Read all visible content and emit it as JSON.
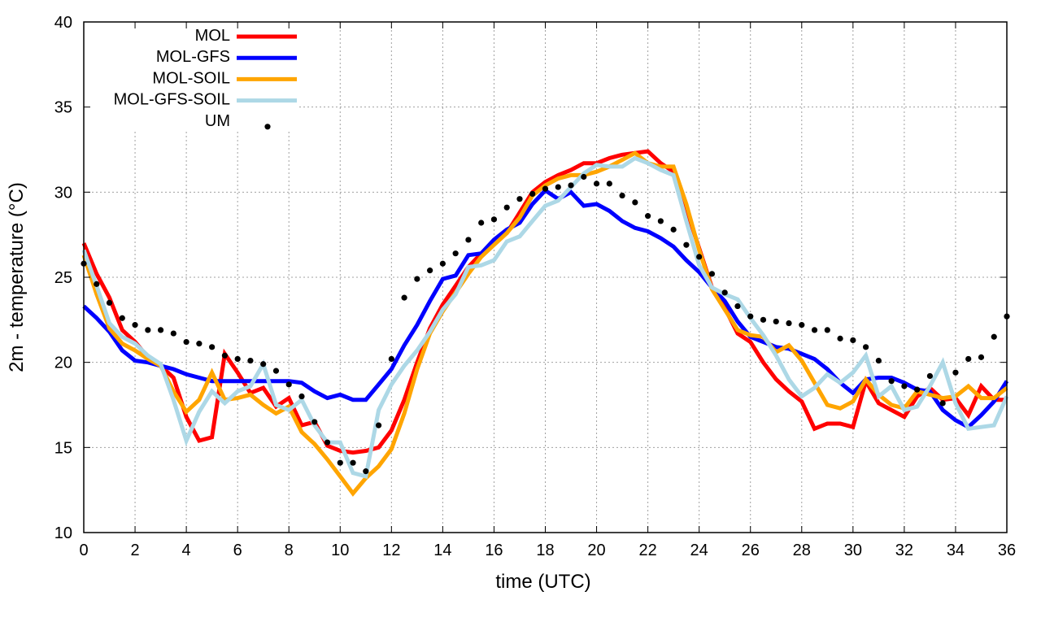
{
  "chart_data": {
    "type": "line",
    "title": "",
    "xlabel": "time (UTC)",
    "ylabel": "2m - temperature (°C)",
    "xlim": [
      0,
      36
    ],
    "ylim": [
      10,
      40
    ],
    "xticks": [
      0,
      2,
      4,
      6,
      8,
      10,
      12,
      14,
      16,
      18,
      20,
      22,
      24,
      26,
      28,
      30,
      32,
      34,
      36
    ],
    "yticks": [
      10,
      15,
      20,
      25,
      30,
      35,
      40
    ],
    "grid": true,
    "legend_position": "top-left",
    "x_step": 0.5,
    "series": [
      {
        "name": "MOL",
        "color": "#ff0000",
        "style": "line",
        "values": [
          27.0,
          25.2,
          23.8,
          21.9,
          21.2,
          20.3,
          19.8,
          19.1,
          16.8,
          15.4,
          15.6,
          20.5,
          19.4,
          18.2,
          18.5,
          17.4,
          17.9,
          16.3,
          16.5,
          15.1,
          14.8,
          14.7,
          14.8,
          15.0,
          16.0,
          17.8,
          20.0,
          22.0,
          23.4,
          24.5,
          25.6,
          26.4,
          27.0,
          27.6,
          28.8,
          30.0,
          30.6,
          31.0,
          31.3,
          31.7,
          31.7,
          32.0,
          32.2,
          32.3,
          32.4,
          31.7,
          31.2,
          29.0,
          26.7,
          24.4,
          23.2,
          21.7,
          21.2,
          20.0,
          19.0,
          18.3,
          17.7,
          16.1,
          16.4,
          16.4,
          16.2,
          18.9,
          17.6,
          17.2,
          16.8,
          18.0,
          18.5,
          17.8,
          17.9,
          16.9,
          18.6,
          17.8,
          17.8
        ]
      },
      {
        "name": "MOL-GFS",
        "color": "#0000ff",
        "style": "line",
        "values": [
          23.3,
          22.6,
          21.8,
          20.7,
          20.1,
          20.0,
          19.8,
          19.6,
          19.3,
          19.1,
          18.9,
          18.9,
          18.9,
          18.9,
          18.9,
          18.9,
          18.9,
          18.8,
          18.3,
          17.9,
          18.1,
          17.8,
          17.8,
          18.7,
          19.6,
          21.0,
          22.2,
          23.6,
          24.9,
          25.1,
          26.3,
          26.4,
          27.2,
          27.8,
          28.2,
          29.3,
          30.1,
          29.6,
          30.0,
          29.2,
          29.3,
          28.9,
          28.3,
          27.9,
          27.7,
          27.3,
          26.8,
          26.0,
          25.3,
          24.4,
          23.6,
          22.4,
          21.5,
          21.2,
          20.9,
          20.8,
          20.5,
          20.2,
          19.6,
          18.8,
          18.2,
          19.0,
          19.1,
          19.1,
          18.8,
          18.4,
          18.3,
          17.2,
          16.6,
          16.2,
          16.9,
          17.7,
          18.9
        ]
      },
      {
        "name": "MOL-SOIL",
        "color": "#ffa500",
        "style": "line",
        "values": [
          26.3,
          24.0,
          22.0,
          21.1,
          20.7,
          20.2,
          19.8,
          18.3,
          17.1,
          17.8,
          19.4,
          17.8,
          17.9,
          18.1,
          17.5,
          17.0,
          17.4,
          15.9,
          15.2,
          14.3,
          13.3,
          12.3,
          13.2,
          13.9,
          14.9,
          17.0,
          19.6,
          21.7,
          23.0,
          24.1,
          25.2,
          26.2,
          26.9,
          27.6,
          28.5,
          29.8,
          30.4,
          30.8,
          31.0,
          31.0,
          31.2,
          31.5,
          31.9,
          32.3,
          31.7,
          31.5,
          31.5,
          29.3,
          26.6,
          24.3,
          23.1,
          21.9,
          21.6,
          21.5,
          20.6,
          21.0,
          20.1,
          18.8,
          17.5,
          17.3,
          17.7,
          19.0,
          18.1,
          17.5,
          17.3,
          18.3,
          18.1,
          17.9,
          18.0,
          18.6,
          17.9,
          17.9,
          18.5
        ]
      },
      {
        "name": "MOL-GFS-SOIL",
        "color": "#add8e6",
        "style": "line",
        "values": [
          26.6,
          24.5,
          22.3,
          21.5,
          21.1,
          20.4,
          19.9,
          17.8,
          15.4,
          17.1,
          18.3,
          17.6,
          18.3,
          18.6,
          19.9,
          17.5,
          17.2,
          17.8,
          16.3,
          15.3,
          15.3,
          13.5,
          13.3,
          17.2,
          18.7,
          19.8,
          20.7,
          21.8,
          23.1,
          24.0,
          25.6,
          25.7,
          26.0,
          27.1,
          27.4,
          28.3,
          29.2,
          29.5,
          30.3,
          31.1,
          31.6,
          31.5,
          31.5,
          32.0,
          31.7,
          31.3,
          31.0,
          28.3,
          25.7,
          24.4,
          24.0,
          23.7,
          22.6,
          21.6,
          20.4,
          19.0,
          18.0,
          18.5,
          19.3,
          18.8,
          19.4,
          20.4,
          18.0,
          18.6,
          17.2,
          17.4,
          18.6,
          20.0,
          17.6,
          16.1,
          16.2,
          16.3,
          18.0
        ]
      },
      {
        "name": "UM",
        "color": "#000000",
        "style": "points",
        "values": [
          25.8,
          24.6,
          23.5,
          22.6,
          22.2,
          21.9,
          21.9,
          21.7,
          21.2,
          21.1,
          20.9,
          20.4,
          20.2,
          20.1,
          19.9,
          19.5,
          18.7,
          18.0,
          16.5,
          15.3,
          14.1,
          14.1,
          13.6,
          16.3,
          20.2,
          23.8,
          24.9,
          25.4,
          25.8,
          26.4,
          27.2,
          28.2,
          28.4,
          29.1,
          29.6,
          29.9,
          30.2,
          30.3,
          30.4,
          30.9,
          30.5,
          30.5,
          29.8,
          29.4,
          28.6,
          28.3,
          27.8,
          26.9,
          26.2,
          25.2,
          24.1,
          23.3,
          22.7,
          22.5,
          22.4,
          22.3,
          22.2,
          21.9,
          21.9,
          21.4,
          21.3,
          20.9,
          20.1,
          18.9,
          18.6,
          18.4,
          19.2,
          17.6,
          19.4,
          20.2,
          20.3,
          21.5,
          22.7
        ]
      }
    ]
  }
}
